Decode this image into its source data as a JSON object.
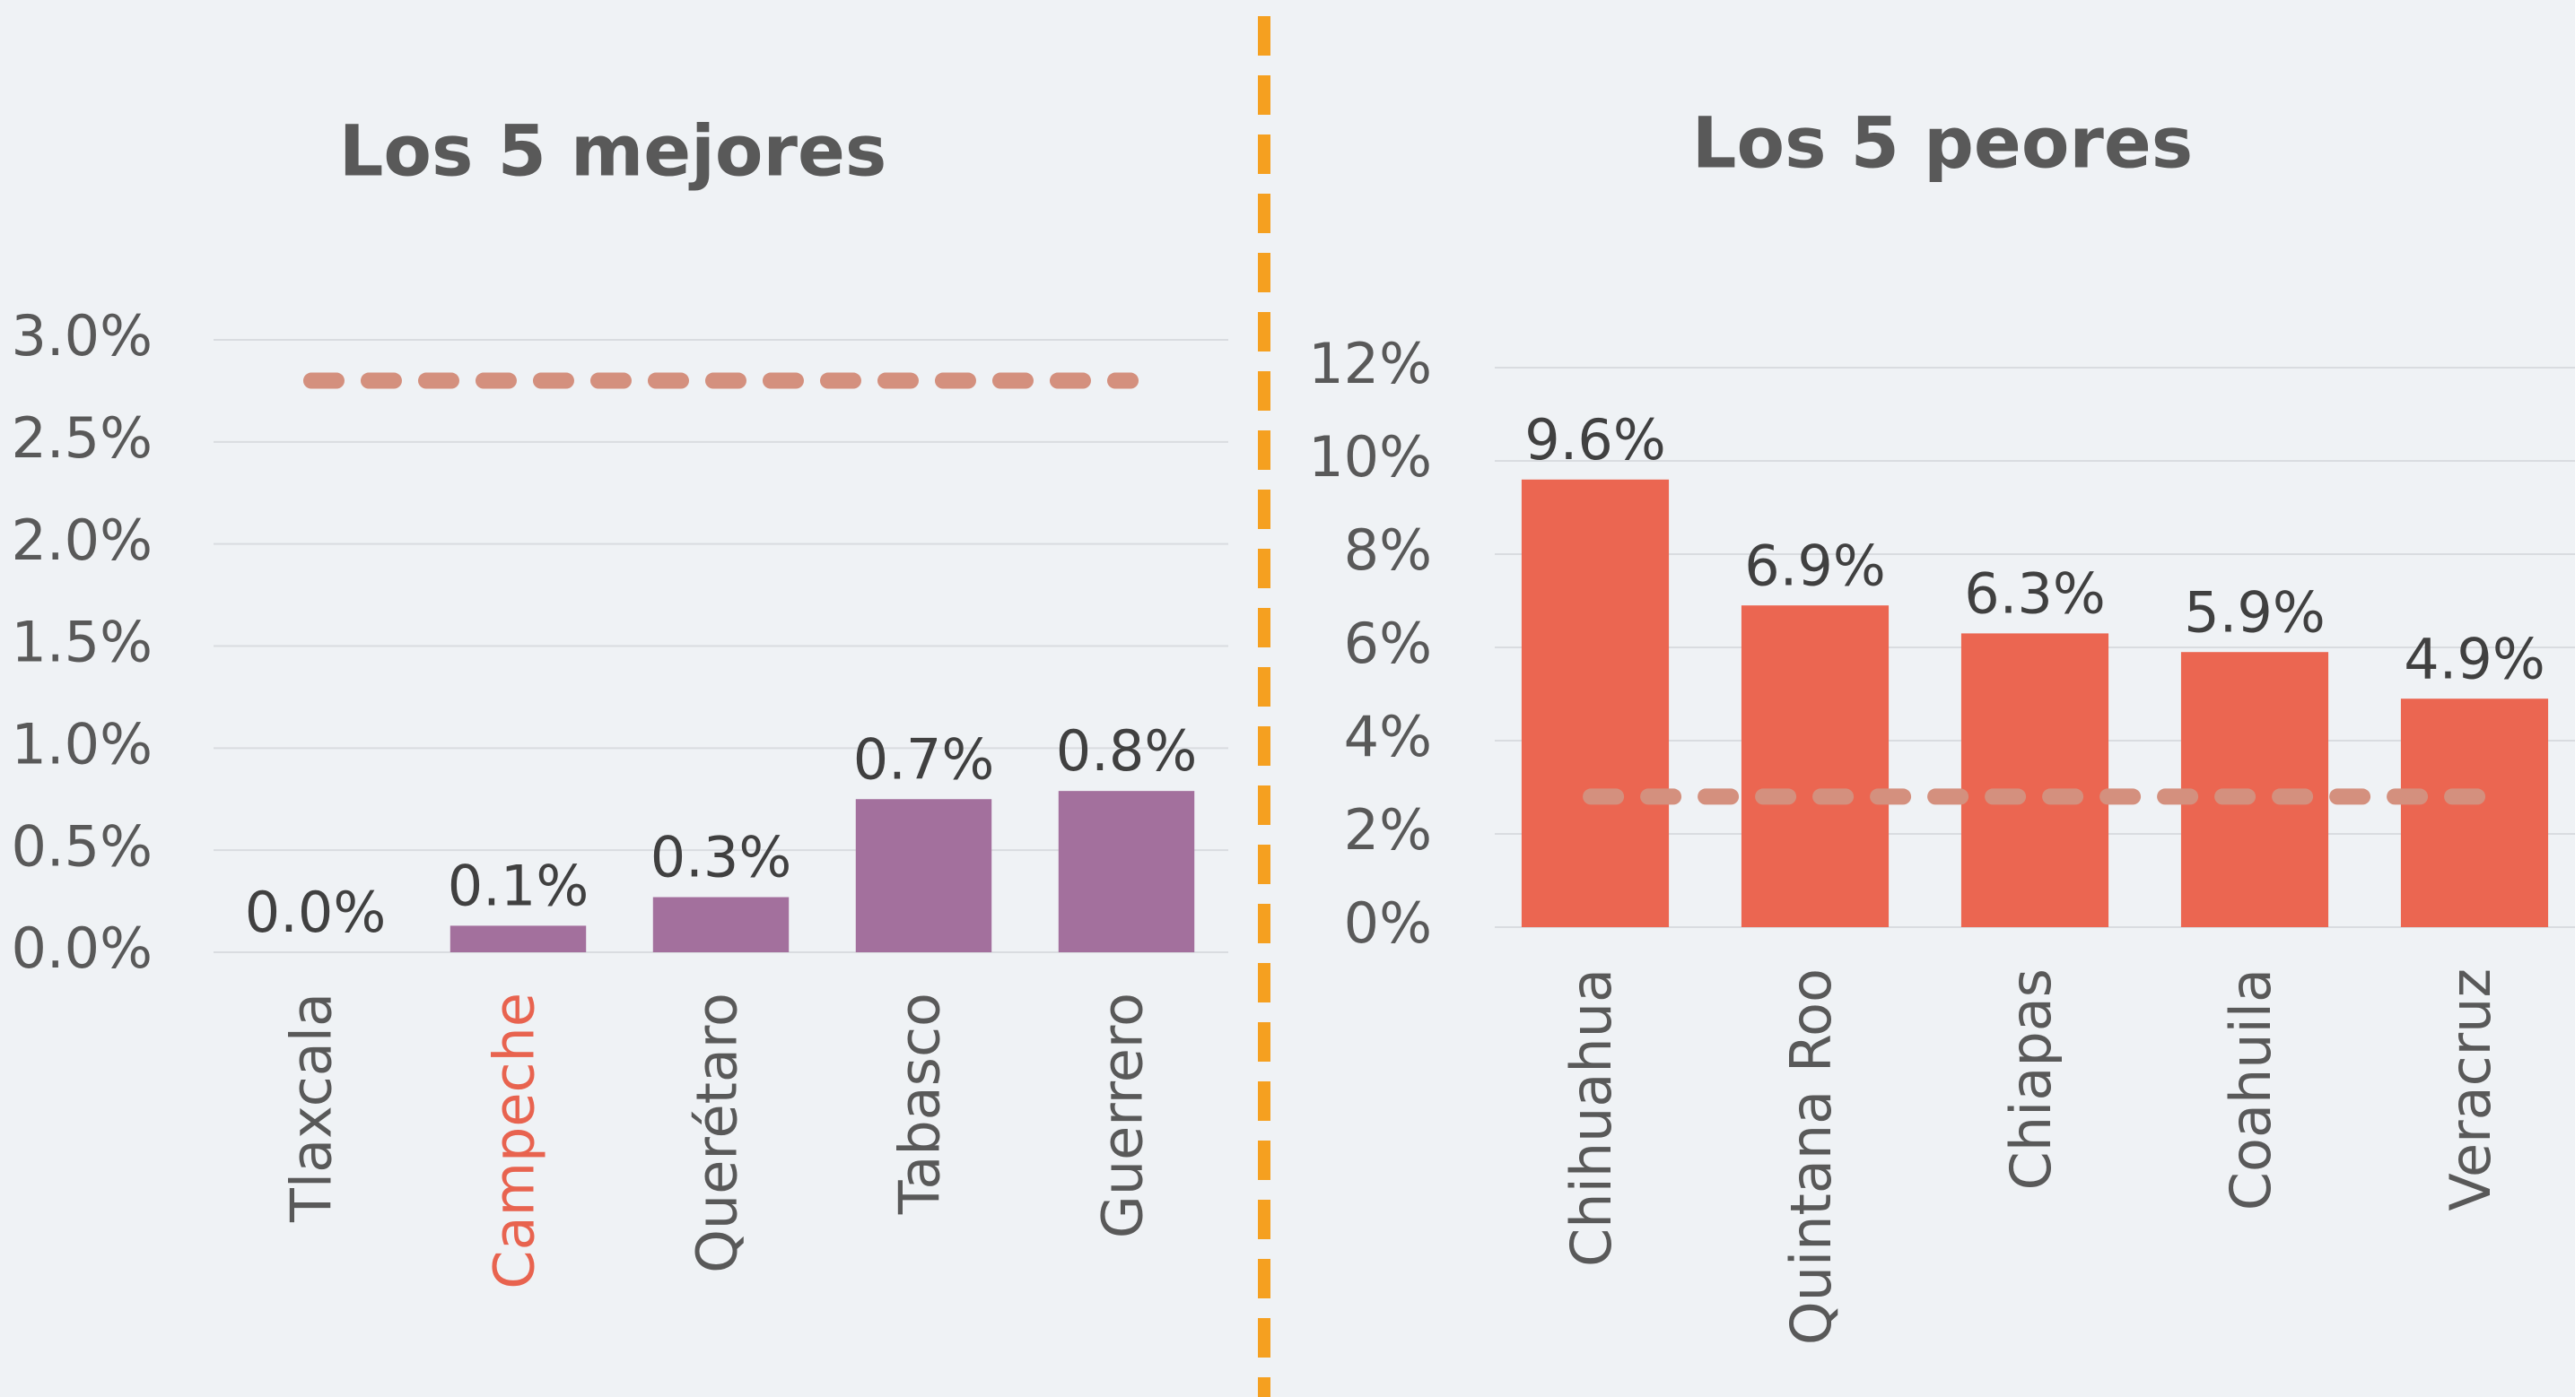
{
  "chart_data": [
    {
      "type": "bar",
      "title": "Los 5 mejores",
      "categories": [
        "Tlaxcala",
        "Campeche",
        "Querétaro",
        "Tabasco",
        "Guerrero"
      ],
      "category_colors": [
        "#595959",
        "#e8634f",
        "#595959",
        "#595959",
        "#595959"
      ],
      "values": [
        0,
        0.13,
        0.27,
        0.75,
        0.79
      ],
      "value_labels": [
        "0.0%",
        "0.1%",
        "0.3%",
        "0.7%",
        "0.8%"
      ],
      "color": "#a3709d",
      "reference_line": 2.8,
      "reference_color": "#d4907e",
      "ylim": [
        0,
        3
      ],
      "yticks": [
        {
          "value": 0,
          "label": "0.0%"
        },
        {
          "value": 0.5,
          "label": "0.5%"
        },
        {
          "value": 1,
          "label": "1.0%"
        },
        {
          "value": 1.5,
          "label": "1.5%"
        },
        {
          "value": 2,
          "label": "2.0%"
        },
        {
          "value": 2.5,
          "label": "2.5%"
        },
        {
          "value": 3,
          "label": "3.0%"
        }
      ],
      "grid": true
    },
    {
      "type": "bar",
      "title": "Los 5 peores",
      "categories": [
        "Chihuahua",
        "Quintana Roo",
        "Chiapas",
        "Coahuila",
        "Veracruz"
      ],
      "category_colors": [
        "#595959",
        "#595959",
        "#595959",
        "#595959",
        "#595959"
      ],
      "values": [
        9.6,
        6.9,
        6.3,
        5.9,
        4.9
      ],
      "value_labels": [
        "9.6%",
        "6.9%",
        "6.3%",
        "5.9%",
        "4.9%"
      ],
      "color": "#eb6651",
      "reference_line": 2.8,
      "reference_color": "#d4907e",
      "ylim": [
        0,
        12
      ],
      "yticks": [
        {
          "value": 0,
          "label": "0%"
        },
        {
          "value": 2,
          "label": "2%"
        },
        {
          "value": 4,
          "label": "4%"
        },
        {
          "value": 6,
          "label": "6%"
        },
        {
          "value": 8,
          "label": "8%"
        },
        {
          "value": 10,
          "label": "10%"
        },
        {
          "value": 12,
          "label": "12%"
        }
      ],
      "grid": true
    }
  ]
}
